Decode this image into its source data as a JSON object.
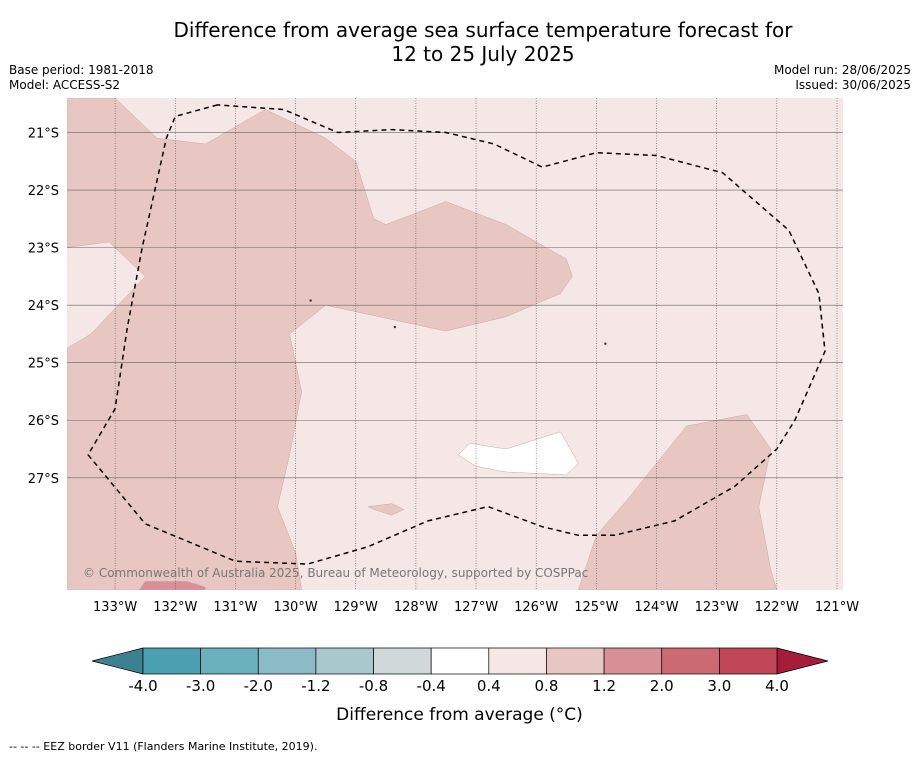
{
  "header": {
    "title_line1": "Difference from average sea surface temperature forecast for",
    "title_line2": "12 to 25 July 2025",
    "base_period": "Base period: 1981-2018",
    "model": "Model: ACCESS-S2",
    "model_run": "Model run: 28/06/2025",
    "issued": "Issued: 30/06/2025"
  },
  "copyright": "© Commonwealth of Australia 2025, Bureau of Meteorology, supported by COSPPac",
  "footnote": "--  --  -- EEZ border V11 (Flanders Marine Institute, 2019).",
  "colorbar": {
    "label": "Difference from average (°C)",
    "tick_labels": [
      "-4.0",
      "-3.0",
      "-2.0",
      "-1.2",
      "-0.8",
      "-0.4",
      "0.4",
      "0.8",
      "1.2",
      "2.0",
      "3.0",
      "4.0"
    ],
    "colors": [
      "#4aa0b0",
      "#6ab0bd",
      "#8cbbc6",
      "#a9c8cc",
      "#d0d8da",
      "#ffffff",
      "#f4e7e5",
      "#e8c7c2",
      "#d98f96",
      "#cc6a74",
      "#c04658"
    ],
    "extend_low_color": "#3d8190",
    "extend_high_color": "#a51d3a"
  },
  "chart_data": {
    "type": "heatmap",
    "title": "Difference from average sea surface temperature forecast for 12 to 25 July 2025",
    "xlabel": "",
    "ylabel": "",
    "xlim": [
      -133.8,
      -120.9
    ],
    "ylim": [
      -28.95,
      -20.4
    ],
    "x_ticks": [
      -133,
      -132,
      -131,
      -130,
      -129,
      -128,
      -127,
      -126,
      -125,
      -124,
      -123,
      -122,
      -121
    ],
    "x_tick_labels": [
      "133°W",
      "132°W",
      "131°W",
      "130°W",
      "129°W",
      "128°W",
      "127°W",
      "126°W",
      "125°W",
      "124°W",
      "123°W",
      "122°W",
      "121°W"
    ],
    "y_ticks": [
      -21,
      -22,
      -23,
      -24,
      -25,
      -26,
      -27
    ],
    "y_tick_labels": [
      "21°S",
      "22°S",
      "23°S",
      "24°S",
      "25°S",
      "26°S",
      "27°S"
    ],
    "grid": true,
    "background_category": "0.4 to 0.8",
    "regions": [
      {
        "category": "0.8 to 1.2",
        "color": "#e8c7c2",
        "points": [
          [
            -133.8,
            -20.4
          ],
          [
            -133.0,
            -20.4
          ],
          [
            -132.3,
            -21.1
          ],
          [
            -131.5,
            -21.2
          ],
          [
            -130.5,
            -20.6
          ],
          [
            -129.5,
            -21.1
          ],
          [
            -129.0,
            -21.5
          ],
          [
            -128.7,
            -22.5
          ],
          [
            -128.5,
            -22.6
          ],
          [
            -127.5,
            -22.2
          ],
          [
            -126.5,
            -22.6
          ],
          [
            -125.5,
            -23.2
          ],
          [
            -125.4,
            -23.5
          ],
          [
            -125.6,
            -23.8
          ],
          [
            -126.5,
            -24.2
          ],
          [
            -127.5,
            -24.45
          ],
          [
            -129.5,
            -24.0
          ],
          [
            -130.1,
            -24.5
          ],
          [
            -129.9,
            -25.5
          ],
          [
            -130.1,
            -26.6
          ],
          [
            -130.3,
            -27.5
          ],
          [
            -130.0,
            -28.3
          ],
          [
            -129.9,
            -28.95
          ],
          [
            -133.8,
            -28.95
          ],
          [
            -133.8,
            -24.75
          ],
          [
            -133.4,
            -24.5
          ],
          [
            -132.5,
            -23.5
          ],
          [
            -133.1,
            -22.9
          ],
          [
            -133.8,
            -23.0
          ]
        ]
      },
      {
        "category": "0.8 to 1.2",
        "color": "#e8c7c2",
        "points": [
          [
            -125.3,
            -28.95
          ],
          [
            -125.0,
            -28.0
          ],
          [
            -124.5,
            -27.4
          ],
          [
            -123.5,
            -26.1
          ],
          [
            -122.5,
            -25.9
          ],
          [
            -122.1,
            -26.5
          ],
          [
            -122.3,
            -27.5
          ],
          [
            -122.1,
            -28.6
          ],
          [
            -122.0,
            -28.95
          ]
        ]
      },
      {
        "category": "0.8 to 1.2",
        "color": "#e8c7c2",
        "points": [
          [
            -128.8,
            -27.5
          ],
          [
            -128.4,
            -27.45
          ],
          [
            -128.2,
            -27.55
          ],
          [
            -128.4,
            -27.65
          ],
          [
            -128.7,
            -27.55
          ]
        ]
      },
      {
        "category": "1.2 to 2.0",
        "color": "#d98f96",
        "points": [
          [
            -132.6,
            -28.95
          ],
          [
            -132.5,
            -28.8
          ],
          [
            -131.8,
            -28.8
          ],
          [
            -131.5,
            -28.9
          ],
          [
            -131.5,
            -28.95
          ]
        ]
      },
      {
        "category": "-0.4 to 0.4",
        "color": "#ffffff",
        "points": [
          [
            -126.5,
            -26.5
          ],
          [
            -125.6,
            -26.2
          ],
          [
            -125.3,
            -26.75
          ],
          [
            -125.5,
            -26.95
          ],
          [
            -126.5,
            -26.9
          ],
          [
            -127.0,
            -26.8
          ],
          [
            -127.3,
            -26.6
          ],
          [
            -127.1,
            -26.4
          ]
        ]
      }
    ],
    "eez_border": [
      [
        -131.3,
        -20.52
      ],
      [
        -132.0,
        -20.72
      ],
      [
        -132.15,
        -21.1
      ],
      [
        -132.55,
        -23.0
      ],
      [
        -132.8,
        -24.4
      ],
      [
        -133.0,
        -25.8
      ],
      [
        -133.45,
        -26.6
      ],
      [
        -132.5,
        -27.8
      ],
      [
        -131.0,
        -28.45
      ],
      [
        -129.8,
        -28.5
      ],
      [
        -128.8,
        -28.2
      ],
      [
        -127.8,
        -27.75
      ],
      [
        -126.8,
        -27.5
      ],
      [
        -125.9,
        -27.85
      ],
      [
        -125.3,
        -28.0
      ],
      [
        -124.7,
        -28.0
      ],
      [
        -123.7,
        -27.75
      ],
      [
        -122.7,
        -27.15
      ],
      [
        -122.0,
        -26.5
      ],
      [
        -121.7,
        -26.0
      ],
      [
        -121.2,
        -24.8
      ],
      [
        -121.3,
        -23.8
      ],
      [
        -121.8,
        -22.7
      ],
      [
        -122.9,
        -21.7
      ],
      [
        -124.0,
        -21.4
      ],
      [
        -125.0,
        -21.35
      ],
      [
        -125.9,
        -21.6
      ],
      [
        -126.7,
        -21.2
      ],
      [
        -127.5,
        -21.0
      ],
      [
        -128.4,
        -20.95
      ],
      [
        -129.3,
        -21.0
      ],
      [
        -130.2,
        -20.6
      ]
    ]
  }
}
